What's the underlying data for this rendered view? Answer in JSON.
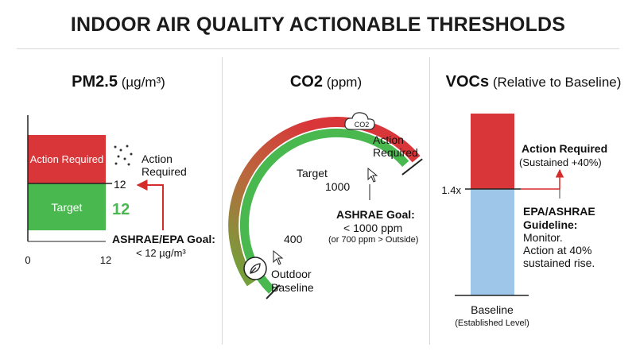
{
  "title": "INDOOR AIR QUALITY ACTIONABLE THRESHOLDS",
  "colors": {
    "red": "#d9363a",
    "green": "#49b84f",
    "blue": "#9dc6e8",
    "arrow_red": "#d62b2b"
  },
  "chart_data": [
    {
      "type": "bar",
      "name": "PM2.5",
      "unit": "(µg/m³)",
      "xlim": [
        0,
        12
      ],
      "x_ticks": [
        "0",
        "12"
      ],
      "bands": [
        {
          "label": "Action Required",
          "from": 12,
          "to": null,
          "color": "#d9363a"
        },
        {
          "label": "Target",
          "from": 0,
          "to": 12,
          "color": "#49b84f"
        }
      ],
      "threshold": 12,
      "threshold_label": "12",
      "value_label": "12",
      "annotation_action": [
        "Action",
        "Required"
      ],
      "goal_title": "ASHRAE/EPA Goal:",
      "goal_text": "< 12 µg/m³"
    },
    {
      "type": "gauge",
      "name": "CO2",
      "unit": "(ppm)",
      "range": [
        400,
        1000
      ],
      "tick_low": "400",
      "tick_high": "1000",
      "target_label": "Target",
      "action_label": [
        "Action",
        "Required"
      ],
      "badge": "CO2",
      "low_caption": [
        "Outdoor",
        "Baseline"
      ],
      "goal_title": "ASHRAE Goal:",
      "goal_line": "< 1000 ppm",
      "goal_note": "(or 700 ppm > Outside)"
    },
    {
      "type": "bar",
      "name": "VOCs",
      "unit": "(Relative to Baseline)",
      "threshold": 1.4,
      "threshold_label": "1.4x",
      "segments": [
        {
          "label": "Baseline",
          "from": 1.0,
          "to": 1.4,
          "color": "#9dc6e8"
        },
        {
          "label": "Action Required",
          "from": 1.4,
          "to": null,
          "color": "#d9363a"
        }
      ],
      "action_title": "Action Required",
      "action_sub": "(Sustained +40%)",
      "guideline": [
        "EPA/ASHRAE",
        "Guideline:",
        "Monitor.",
        "Action at 40%",
        "sustained rise."
      ],
      "baseline_label": "Baseline",
      "baseline_sub": "(Established Level)"
    }
  ]
}
